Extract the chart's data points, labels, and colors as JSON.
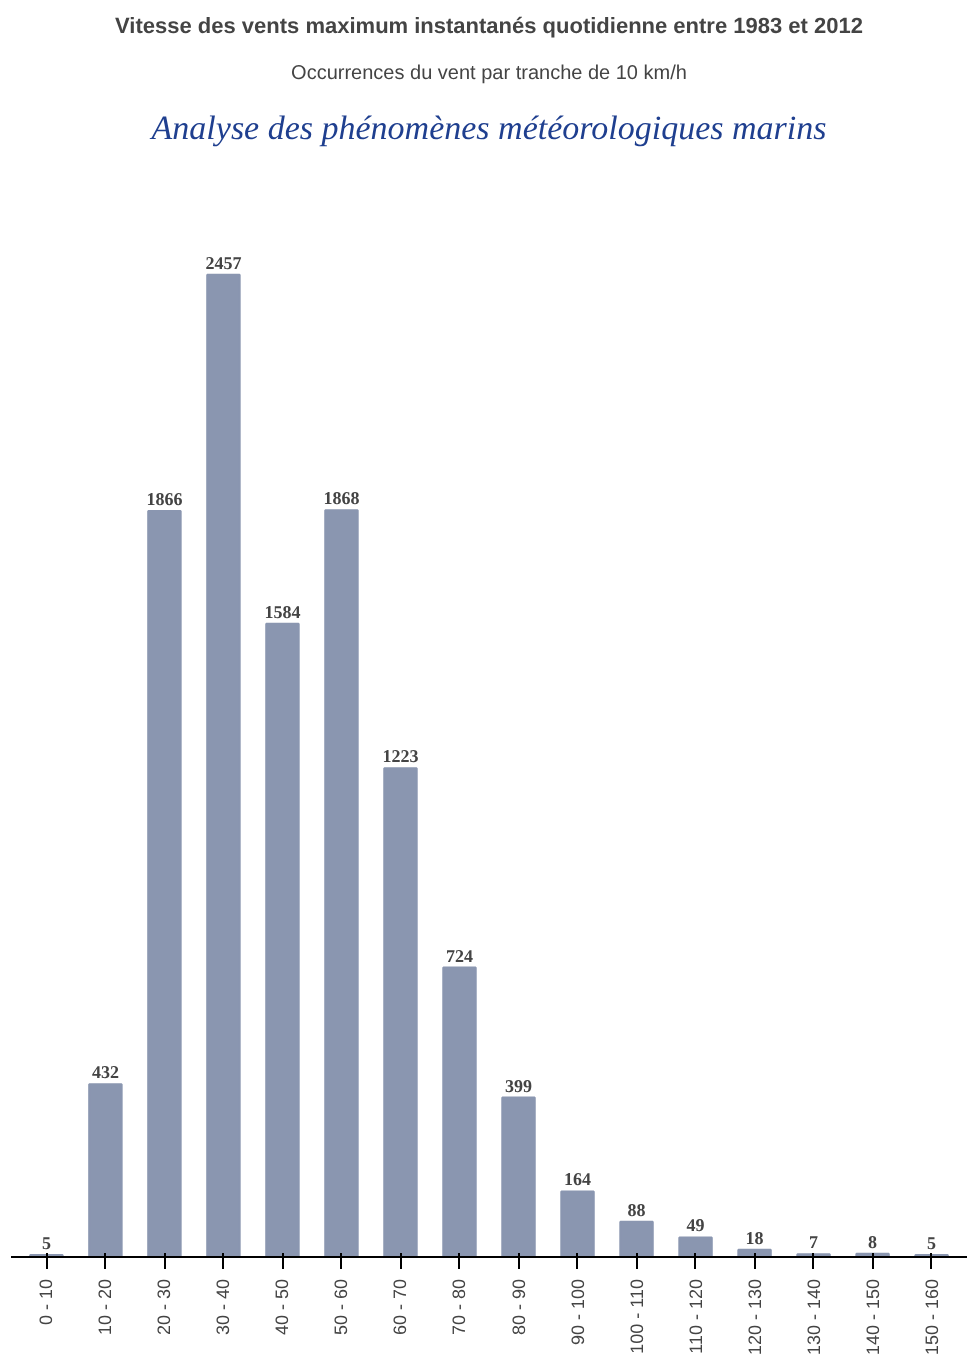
{
  "chart_data": {
    "type": "bar",
    "title": "Vitesse des vents maximum instantanés quotidienne entre 1983 et 2012",
    "subtitle": "Occurrences du vent par tranche de 10 km/h",
    "annotations": [
      "Analyse des phénomènes météorologiques marins"
    ],
    "categories": [
      "0 - 10",
      "10 - 20",
      "20 - 30",
      "30 - 40",
      "40 - 50",
      "50 - 60",
      "60 - 70",
      "70 - 80",
      "80 - 90",
      "90 - 100",
      "100 - 110",
      "110 - 120",
      "120 - 130",
      "130 - 140",
      "140 - 150",
      "150 - 160"
    ],
    "values": [
      5,
      432,
      1866,
      2457,
      1584,
      1868,
      1223,
      724,
      399,
      164,
      88,
      49,
      18,
      7,
      8,
      5
    ],
    "color": "#8a96b0",
    "data_labels": true
  }
}
